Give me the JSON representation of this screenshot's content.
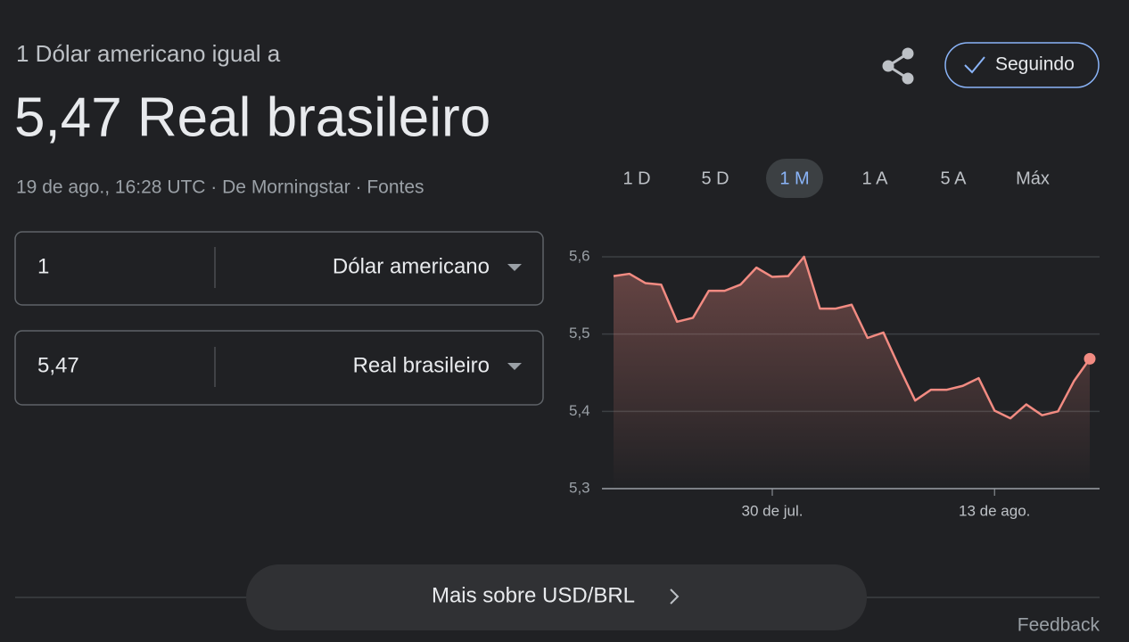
{
  "header": {
    "subtitle": "1 Dólar americano igual a",
    "title": "5,47 Real brasileiro",
    "meta": "19 de ago., 16:28 UTC · De Morningstar · Fontes",
    "follow_button": "Seguindo"
  },
  "converter": [
    {
      "amount": "1",
      "currency": "Dólar americano"
    },
    {
      "amount": "5,47",
      "currency": "Real brasileiro"
    }
  ],
  "ranges": [
    "1 D",
    "5 D",
    "1 M",
    "1 A",
    "5 A",
    "Máx"
  ],
  "chart_data": {
    "type": "line",
    "categories": [
      null,
      null,
      null,
      null,
      null,
      null,
      null,
      null,
      null,
      null,
      "30 de jul.",
      null,
      null,
      null,
      null,
      null,
      null,
      null,
      null,
      null,
      null,
      null,
      null,
      null,
      "13 de ago.",
      null,
      null,
      null,
      null,
      null,
      null
    ],
    "values": [
      5.575,
      5.578,
      5.566,
      5.564,
      5.516,
      5.521,
      5.556,
      5.556,
      5.564,
      5.586,
      5.574,
      5.575,
      5.6,
      5.533,
      5.533,
      5.538,
      5.495,
      5.502,
      5.457,
      5.414,
      5.428,
      5.428,
      5.433,
      5.443,
      5.401,
      5.391,
      5.409,
      5.395,
      5.4,
      5.439,
      5.468
    ],
    "color": "#f28b82",
    "ylim": [
      5.3,
      5.6
    ],
    "yticks": [
      {
        "value": 5.3,
        "label": "5,3"
      },
      {
        "value": 5.4,
        "label": "5,4"
      },
      {
        "value": 5.5,
        "label": "5,5"
      },
      {
        "value": 5.6,
        "label": "5,6"
      }
    ],
    "grid": true
  },
  "more_button": "Mais sobre USD/BRL",
  "feedback": "Feedback"
}
